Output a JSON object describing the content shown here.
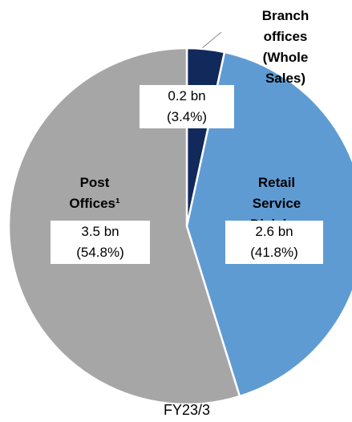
{
  "chart_data": {
    "type": "pie",
    "caption": "FY23/3",
    "categories": [
      "Branch offices\n(Whole Sales)",
      "Retail Service\nDivision",
      "Post\nOffices¹"
    ],
    "values": [
      3.4,
      41.8,
      54.8
    ],
    "value_labels": [
      "(3.4%)",
      "(41.8%)",
      "(54.8%)"
    ],
    "amount_labels": [
      "0.2 bn",
      "2.6 bn",
      "3.5 bn"
    ],
    "colors": [
      "#12295c",
      "#5f9bd3",
      "#a6a6a6"
    ]
  }
}
